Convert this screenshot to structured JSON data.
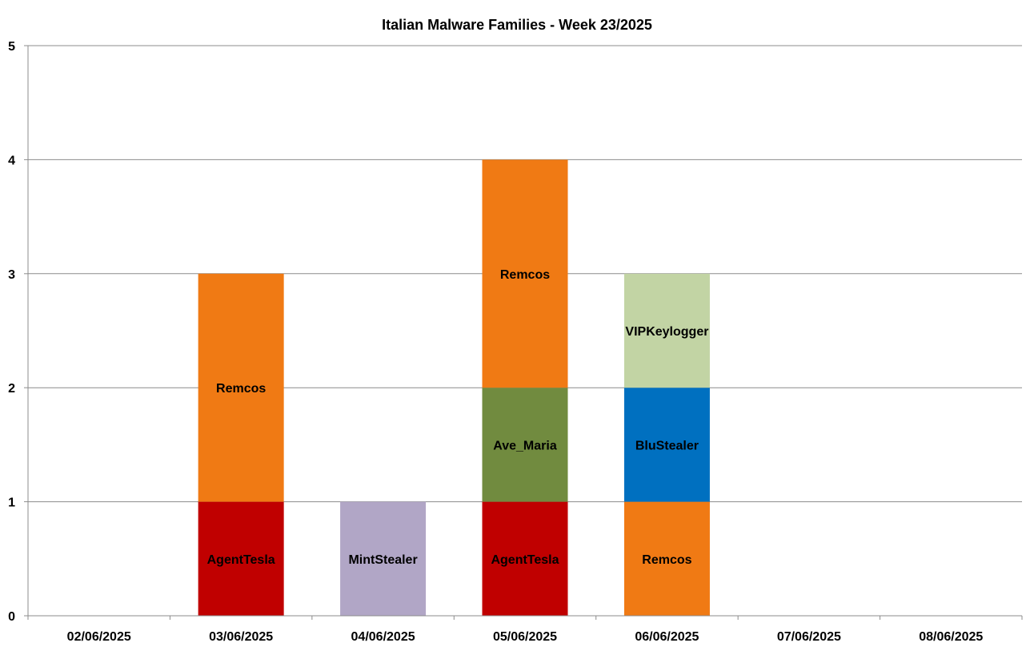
{
  "chart_data": {
    "type": "bar",
    "stacked": true,
    "title": "Italian Malware Families - Week 23/2025",
    "xlabel": "",
    "ylabel": "",
    "ylim": [
      0,
      5
    ],
    "yticks": [
      "0",
      "1",
      "2",
      "3",
      "4",
      "5"
    ],
    "grid": true,
    "legend": "none",
    "categories": [
      "02/06/2025",
      "03/06/2025",
      "04/06/2025",
      "05/06/2025",
      "06/06/2025",
      "07/06/2025",
      "08/06/2025"
    ],
    "colors": {
      "AgentTesla": "#c00000",
      "Remcos": "#f07a14",
      "MintStealer": "#b1a6c6",
      "Ave_Maria": "#718b3f",
      "BluStealer": "#0070c0",
      "VIPKeylogger": "#c2d4a4"
    },
    "stacks": [
      [],
      [
        {
          "label": "AgentTesla",
          "value": 1
        },
        {
          "label": "Remcos",
          "value": 2
        }
      ],
      [
        {
          "label": "MintStealer",
          "value": 1
        }
      ],
      [
        {
          "label": "AgentTesla",
          "value": 1
        },
        {
          "label": "Ave_Maria",
          "value": 1
        },
        {
          "label": "Remcos",
          "value": 2
        }
      ],
      [
        {
          "label": "Remcos",
          "value": 1
        },
        {
          "label": "BluStealer",
          "value": 1
        },
        {
          "label": "VIPKeylogger",
          "value": 1
        }
      ],
      [],
      []
    ]
  }
}
